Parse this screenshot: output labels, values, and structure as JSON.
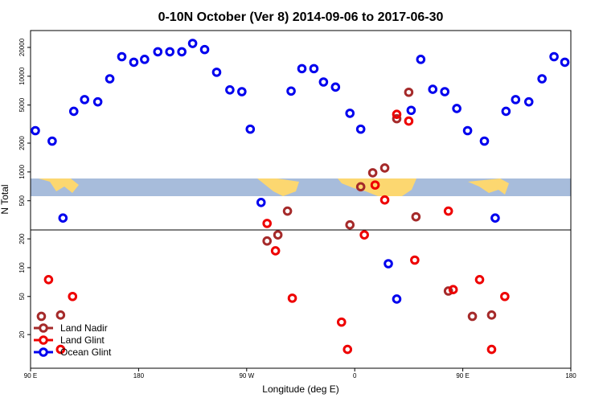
{
  "chart_data": {
    "type": "scatter",
    "title": "0-10N October (Ver 8)   2014-09-06 to 2017-06-30",
    "xlabel": "Longitude (deg E)",
    "ylabel": "N Total",
    "log_y": true,
    "legend": "lower left",
    "xlim": [
      90,
      540
    ],
    "xticks": [
      {
        "value": 90,
        "label": "90 E"
      },
      180,
      {
        "value": 270,
        "label": "90 W"
      },
      {
        "value": 360,
        "label": "0"
      },
      {
        "value": 450,
        "label": "90 E"
      },
      {
        "value": 540,
        "label": "180"
      }
    ],
    "ylim": [
      8.9,
      30000
    ],
    "yticks": [
      20,
      50,
      100,
      200,
      500,
      1000,
      2000,
      5000,
      10000,
      20000
    ],
    "series": [
      {
        "name": "Land Nadir",
        "color": "#a52a2a",
        "x": [
          99,
          115,
          287,
          296,
          304,
          356,
          365,
          375,
          385,
          395,
          405,
          411,
          438,
          458,
          474
        ],
        "values": [
          31,
          32,
          190,
          220,
          390,
          280,
          700,
          980,
          1100,
          3600,
          6800,
          340,
          57,
          31,
          32
        ]
      },
      {
        "name": "Land Glint",
        "color": "#ee0000",
        "x": [
          105,
          115,
          125,
          287,
          294,
          308,
          349,
          354,
          368,
          377,
          385,
          395,
          405,
          410,
          438,
          442,
          464,
          474,
          485
        ],
        "values": [
          75,
          14,
          50,
          290,
          150,
          48,
          27,
          14,
          220,
          730,
          510,
          4000,
          3400,
          120,
          390,
          59,
          75,
          14,
          50
        ]
      },
      {
        "name": "Ocean Glint",
        "color": "#0000ee",
        "x": [
          94,
          108,
          117,
          126,
          135,
          146,
          156,
          166,
          176,
          185,
          196,
          206,
          216,
          225,
          235,
          245,
          256,
          266,
          273,
          282,
          307,
          316,
          326,
          334,
          344,
          356,
          365,
          388,
          395,
          407,
          415,
          425,
          435,
          445,
          454,
          468,
          477,
          486,
          494,
          505,
          516,
          526,
          535
        ],
        "values": [
          2700,
          2100,
          330,
          4300,
          5700,
          5400,
          9400,
          16000,
          14000,
          15000,
          18000,
          18000,
          18000,
          22000,
          19000,
          11000,
          7200,
          6900,
          2800,
          480,
          7000,
          12000,
          12000,
          8700,
          7700,
          4100,
          2800,
          110,
          47,
          4400,
          15000,
          7300,
          6900,
          4600,
          2700,
          2100,
          330,
          4300,
          5700,
          5400,
          9400,
          16000,
          14000
        ]
      }
    ]
  }
}
